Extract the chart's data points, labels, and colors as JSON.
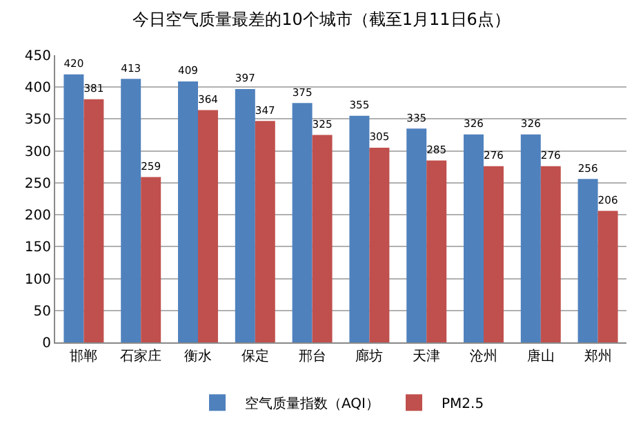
{
  "chart_data": {
    "type": "bar",
    "title": "今日空气质量最差的10个城市（截至1月11日6点）",
    "categories": [
      "邯郸",
      "石家庄",
      "衡水",
      "保定",
      "邢台",
      "廊坊",
      "天津",
      "沧州",
      "唐山",
      "郑州"
    ],
    "series": [
      {
        "name": "空气质量指数（AQI）",
        "color": "#4f81bd",
        "values": [
          420,
          413,
          409,
          397,
          375,
          355,
          335,
          326,
          326,
          256
        ]
      },
      {
        "name": "PM2.5",
        "color": "#c0504d",
        "values": [
          381,
          259,
          364,
          347,
          325,
          305,
          285,
          276,
          276,
          206
        ]
      }
    ],
    "ylim": [
      0,
      450
    ],
    "yticks": [
      0,
      50,
      100,
      150,
      200,
      250,
      300,
      350,
      400,
      450
    ],
    "grid": "y",
    "legend": "bottom",
    "data_labels": true
  }
}
